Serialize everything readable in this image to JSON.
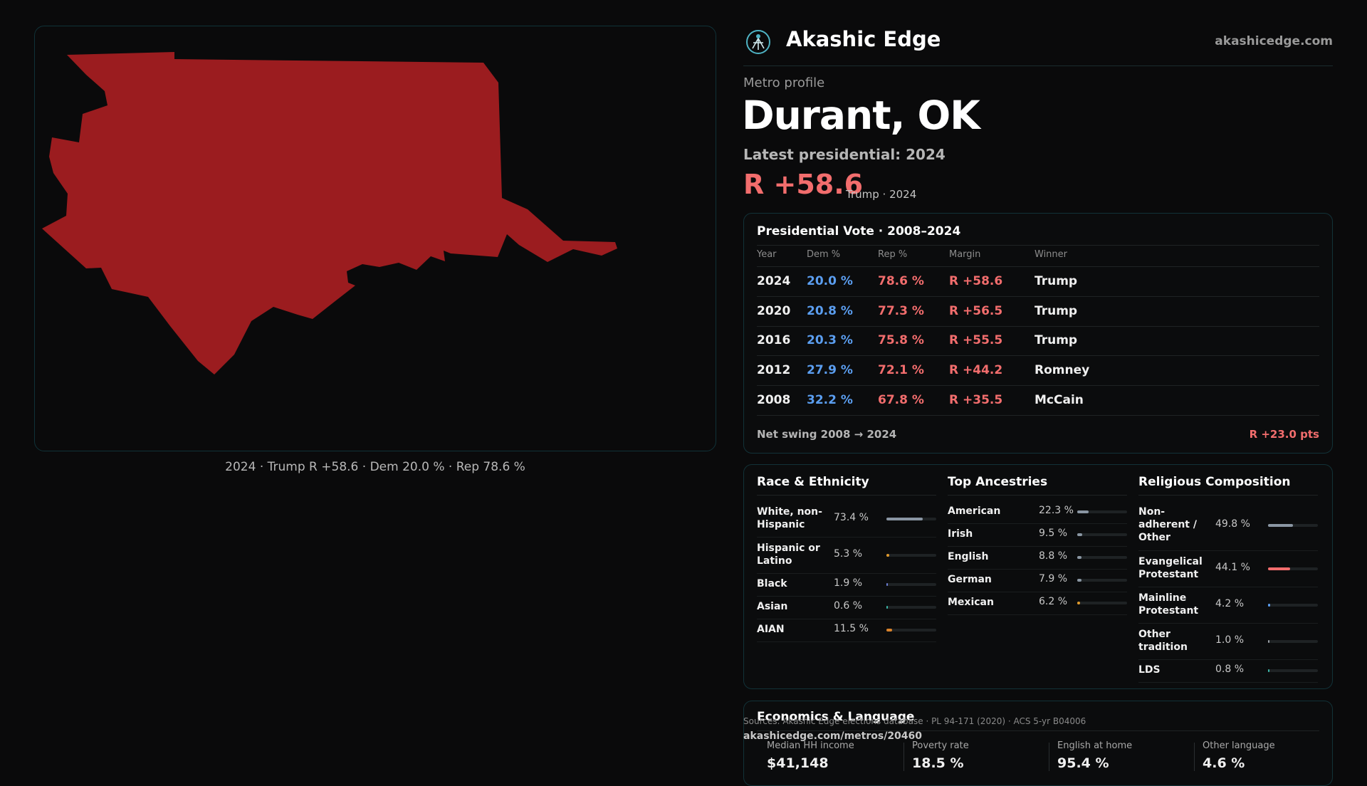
{
  "brand": {
    "name": "Akashic Edge",
    "url": "akashicedge.com"
  },
  "header": {
    "eyebrow": "Metro profile",
    "title": "Durant, OK",
    "latest": "Latest presidential: 2024",
    "margin": "R +58.6",
    "margin_sub": "Trump · 2024"
  },
  "map": {
    "caption": "2024 · Trump R +58.6 · Dem 20.0 % · Rep 78.6 %",
    "fill_color": "#9b1c1f"
  },
  "vote": {
    "title": "Presidential Vote · 2008–2024",
    "columns": [
      "Year",
      "Dem %",
      "Rep %",
      "Margin",
      "Winner"
    ],
    "rows": [
      {
        "year": "2024",
        "dem": "20.0 %",
        "rep": "78.6 %",
        "margin": "R +58.6",
        "winner": "Trump"
      },
      {
        "year": "2020",
        "dem": "20.8 %",
        "rep": "77.3 %",
        "margin": "R +56.5",
        "winner": "Trump"
      },
      {
        "year": "2016",
        "dem": "20.3 %",
        "rep": "75.8 %",
        "margin": "R +55.5",
        "winner": "Trump"
      },
      {
        "year": "2012",
        "dem": "27.9 %",
        "rep": "72.1 %",
        "margin": "R +44.2",
        "winner": "Romney"
      },
      {
        "year": "2008",
        "dem": "32.2 %",
        "rep": "67.8 %",
        "margin": "R +35.5",
        "winner": "McCain"
      }
    ],
    "swing_label": "Net swing 2008 → 2024",
    "swing_value": "R +23.0 pts"
  },
  "race": {
    "title": "Race & Ethnicity",
    "items": [
      {
        "label": "White, non-Hispanic",
        "value": "73.4 %",
        "pct": 73.4,
        "color": "#8a96a3"
      },
      {
        "label": "Hispanic or Latino",
        "value": "5.3 %",
        "pct": 5.3,
        "color": "#e09a2c"
      },
      {
        "label": "Black",
        "value": "1.9 %",
        "pct": 1.9,
        "color": "#6d7fd6"
      },
      {
        "label": "Asian",
        "value": "0.6 %",
        "pct": 0.6,
        "color": "#3bb7a8"
      },
      {
        "label": "AIAN",
        "value": "11.5 %",
        "pct": 11.5,
        "color": "#d9822b"
      }
    ]
  },
  "ancestry": {
    "title": "Top Ancestries",
    "items": [
      {
        "label": "American",
        "value": "22.3 %",
        "pct": 22.3,
        "color": "#8a96a3"
      },
      {
        "label": "Irish",
        "value": "9.5 %",
        "pct": 9.5,
        "color": "#8a96a3"
      },
      {
        "label": "English",
        "value": "8.8 %",
        "pct": 8.8,
        "color": "#8a96a3"
      },
      {
        "label": "German",
        "value": "7.9 %",
        "pct": 7.9,
        "color": "#8a96a3"
      },
      {
        "label": "Mexican",
        "value": "6.2 %",
        "pct": 6.2,
        "color": "#e09a2c"
      }
    ]
  },
  "religion": {
    "title": "Religious Composition",
    "items": [
      {
        "label": "Non-adherent / Other",
        "value": "49.8 %",
        "pct": 49.8,
        "color": "#8a96a3"
      },
      {
        "label": "Evangelical Protestant",
        "value": "44.1 %",
        "pct": 44.1,
        "color": "#f26d6d"
      },
      {
        "label": "Mainline Protestant",
        "value": "4.2 %",
        "pct": 4.2,
        "color": "#5b9ef0"
      },
      {
        "label": "Other tradition",
        "value": "1.0 %",
        "pct": 1.0,
        "color": "#9aa0a6"
      },
      {
        "label": "LDS",
        "value": "0.8 %",
        "pct": 0.8,
        "color": "#3bb7a8"
      }
    ]
  },
  "economics": {
    "title": "Economics & Language",
    "items": [
      {
        "label": "Median HH income",
        "value": "$41,148"
      },
      {
        "label": "Poverty rate",
        "value": "18.5 %"
      },
      {
        "label": "English at home",
        "value": "95.4 %"
      },
      {
        "label": "Other language",
        "value": "4.6 %"
      }
    ]
  },
  "footer": {
    "sources": "Sources: Akashic Edge elections database · PL 94-171 (2020) · ACS 5-yr B04006",
    "link": "akashicedge.com/metros/20460"
  }
}
